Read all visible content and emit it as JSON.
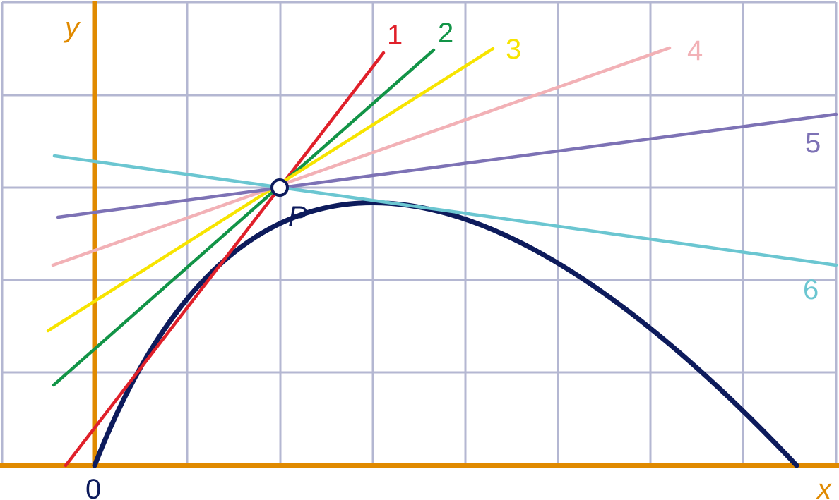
{
  "axes": {
    "x_label": "x",
    "y_label": "y",
    "origin_label": "0",
    "color": "#E08A00"
  },
  "grid": {
    "color": "#B4B7D2"
  },
  "curve": {
    "color": "#0D1B5C"
  },
  "point": {
    "label": "P",
    "color": "#0D1B5C"
  },
  "lines": [
    {
      "label": "1",
      "color": "#E0202A"
    },
    {
      "label": "2",
      "color": "#129447"
    },
    {
      "label": "3",
      "color": "#F7E400"
    },
    {
      "label": "4",
      "color": "#F2B1B6"
    },
    {
      "label": "5",
      "color": "#7D72B5"
    },
    {
      "label": "6",
      "color": "#6BC6D1"
    }
  ]
}
